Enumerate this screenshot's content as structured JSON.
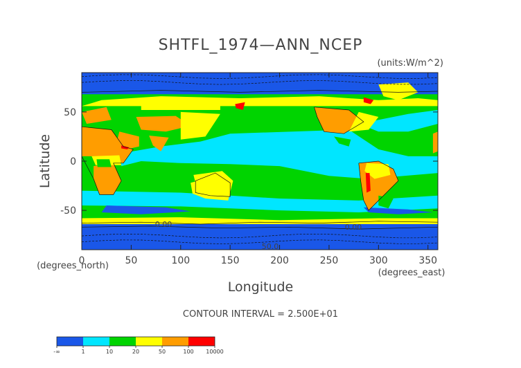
{
  "chart_data": {
    "type": "heatmap",
    "title": "SHTFL_1974—ANN_NCEP",
    "units": "(units:W/m^2)",
    "xlabel": "Longitude",
    "ylabel": "Latitude",
    "x_unit_note": "(degrees_east)",
    "y_unit_note": "(degrees_north)",
    "xlim": [
      0,
      360
    ],
    "ylim": [
      -90,
      90
    ],
    "x_ticks": [
      0,
      50,
      100,
      150,
      200,
      250,
      300,
      350
    ],
    "y_ticks": [
      -50,
      0,
      50
    ],
    "contour_interval_text": "CONTOUR INTERVAL = 2.500E+01",
    "contour_labels": [
      "0.00",
      "0.00",
      "50.0"
    ],
    "colorbar": {
      "tick_labels": [
        "-∞",
        "1",
        "10",
        "20",
        "50",
        "100",
        "10000"
      ],
      "colors": [
        "#1a57e8",
        "#00e6ff",
        "#00d400",
        "#ffff00",
        "#ff9d00",
        "#ff0000"
      ]
    },
    "region_colors": {
      "neg": "#1a57e8",
      "c1": "#00e6ff",
      "c10": "#00d400",
      "c20": "#ffff00",
      "c50": "#ff9d00",
      "c100": "#ff0000"
    }
  }
}
